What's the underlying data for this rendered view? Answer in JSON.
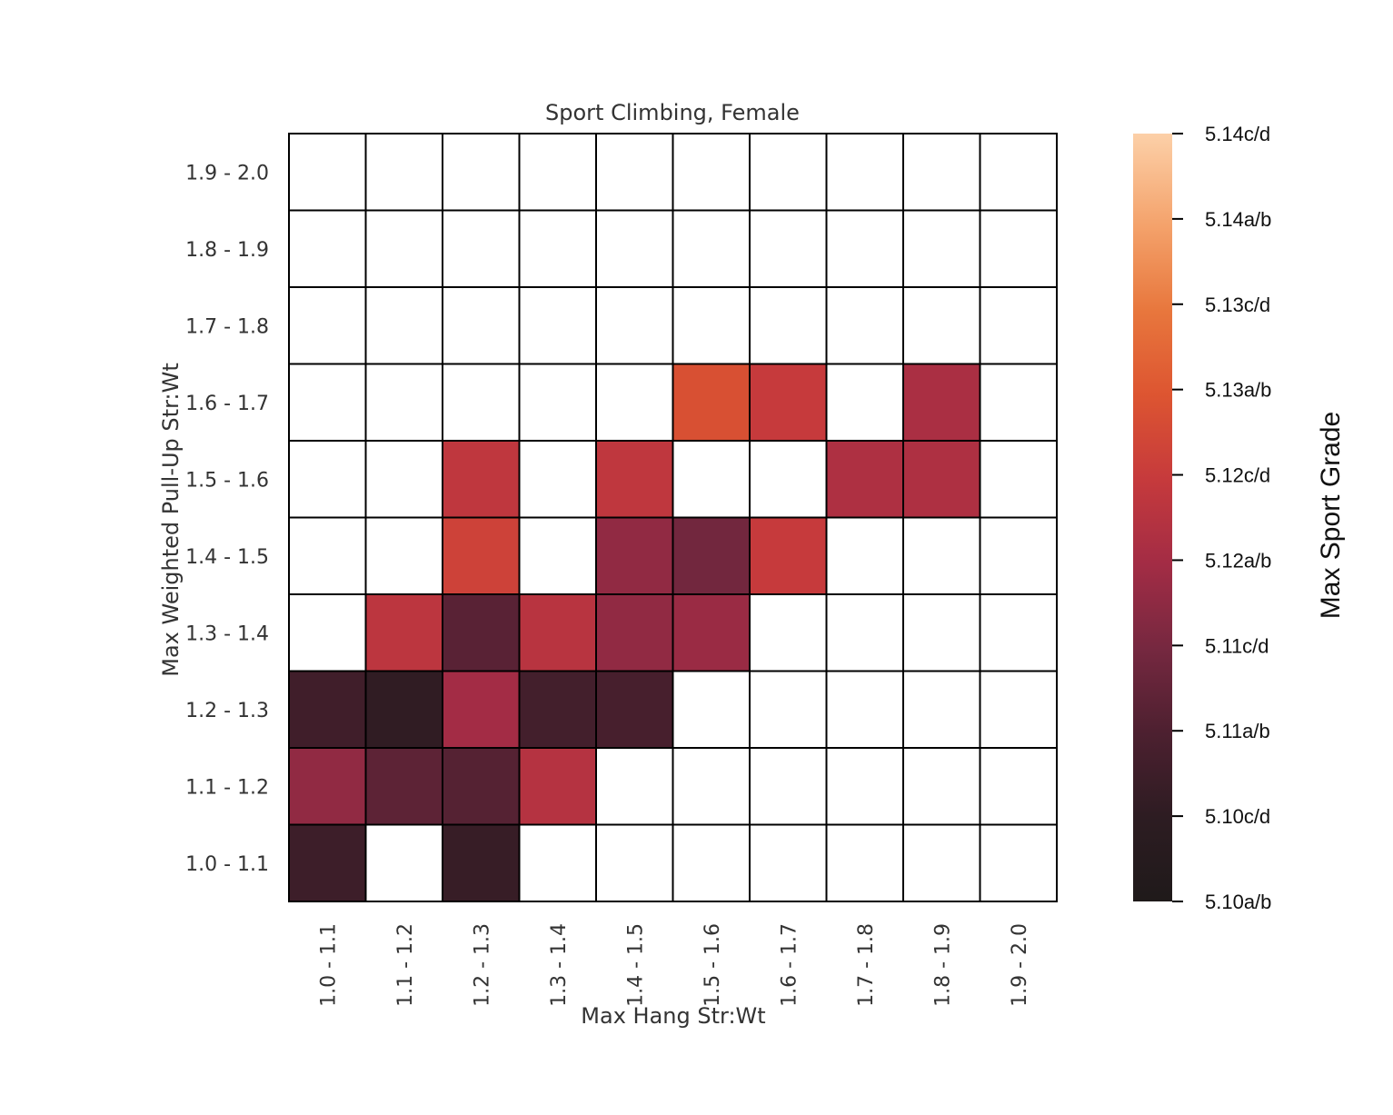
{
  "chart_data": {
    "type": "heatmap",
    "title": "Sport Climbing, Female",
    "xlabel": "Max Hang Str:Wt",
    "ylabel": "Max Weighted Pull-Up Str:Wt",
    "x_categories": [
      "1.0 - 1.1",
      "1.1 - 1.2",
      "1.2 - 1.3",
      "1.3 - 1.4",
      "1.4 - 1.5",
      "1.5 - 1.6",
      "1.6 - 1.7",
      "1.7 - 1.8",
      "1.8 - 1.9",
      "1.9 - 2.0"
    ],
    "y_categories": [
      "1.0 - 1.1",
      "1.1 - 1.2",
      "1.2 - 1.3",
      "1.3 - 1.4",
      "1.4 - 1.5",
      "1.5 - 1.6",
      "1.6 - 1.7",
      "1.7 - 1.8",
      "1.8 - 1.9",
      "1.9 - 2.0"
    ],
    "values": [
      [
        1.5,
        null,
        1.3,
        null,
        null,
        null,
        null,
        null,
        null,
        null
      ],
      [
        3.6,
        2.4,
        2.2,
        4.5,
        null,
        null,
        null,
        null,
        null,
        null
      ],
      [
        1.6,
        1.1,
        4.0,
        1.7,
        1.8,
        null,
        null,
        null,
        null,
        null
      ],
      [
        null,
        4.7,
        2.3,
        4.6,
        3.6,
        3.8,
        null,
        null,
        null,
        null
      ],
      [
        null,
        null,
        5.3,
        null,
        3.6,
        2.9,
        5.0,
        null,
        null,
        null
      ],
      [
        null,
        null,
        4.8,
        null,
        4.8,
        null,
        null,
        4.3,
        4.3,
        null
      ],
      [
        null,
        null,
        null,
        null,
        null,
        5.8,
        5.0,
        null,
        4.2,
        null
      ],
      [
        null,
        null,
        null,
        null,
        null,
        null,
        null,
        null,
        null,
        null
      ],
      [
        null,
        null,
        null,
        null,
        null,
        null,
        null,
        null,
        null,
        null
      ],
      [
        null,
        null,
        null,
        null,
        null,
        null,
        null,
        null,
        null,
        null
      ]
    ],
    "value_scale": "grade index: 0 = 5.10a/b, 1 = 5.10c/d, ... 9 = 5.14c/d",
    "colorbar": {
      "label": "Max Sport Grade",
      "ticks": [
        "5.10a/b",
        "5.10c/d",
        "5.11a/b",
        "5.11c/d",
        "5.12a/b",
        "5.12c/d",
        "5.13a/b",
        "5.13c/d",
        "5.14a/b",
        "5.14c/d"
      ],
      "range": [
        0,
        9
      ],
      "colormap": "rocket"
    }
  }
}
